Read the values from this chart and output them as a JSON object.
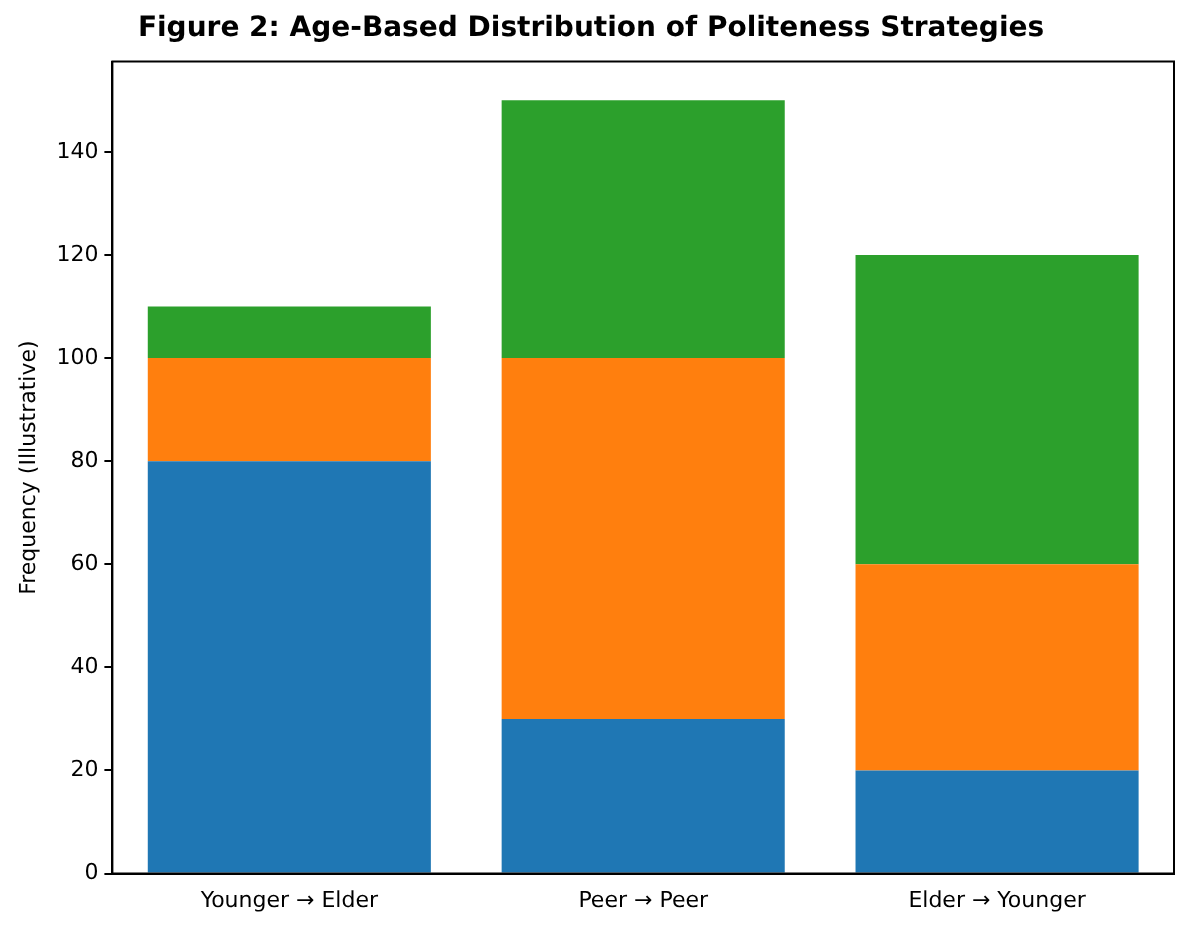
{
  "chart_data": {
    "type": "bar",
    "title": "Figure 2: Age-Based Distribution of Politeness Strategies",
    "ylabel": "Frequency (Illustrative)",
    "categories": [
      "Younger → Elder",
      "Peer → Peer",
      "Elder → Younger"
    ],
    "stacked": true,
    "series": [
      {
        "color": "#1f77b4",
        "values": [
          80,
          30,
          20
        ]
      },
      {
        "color": "#ff7f0e",
        "values": [
          20,
          70,
          40
        ]
      },
      {
        "color": "#2ca02c",
        "values": [
          10,
          50,
          60
        ]
      }
    ],
    "ylim": [
      0,
      157.5
    ],
    "yticks": [
      0,
      20,
      40,
      60,
      80,
      100,
      120,
      140
    ],
    "grid": false,
    "legend": false
  }
}
